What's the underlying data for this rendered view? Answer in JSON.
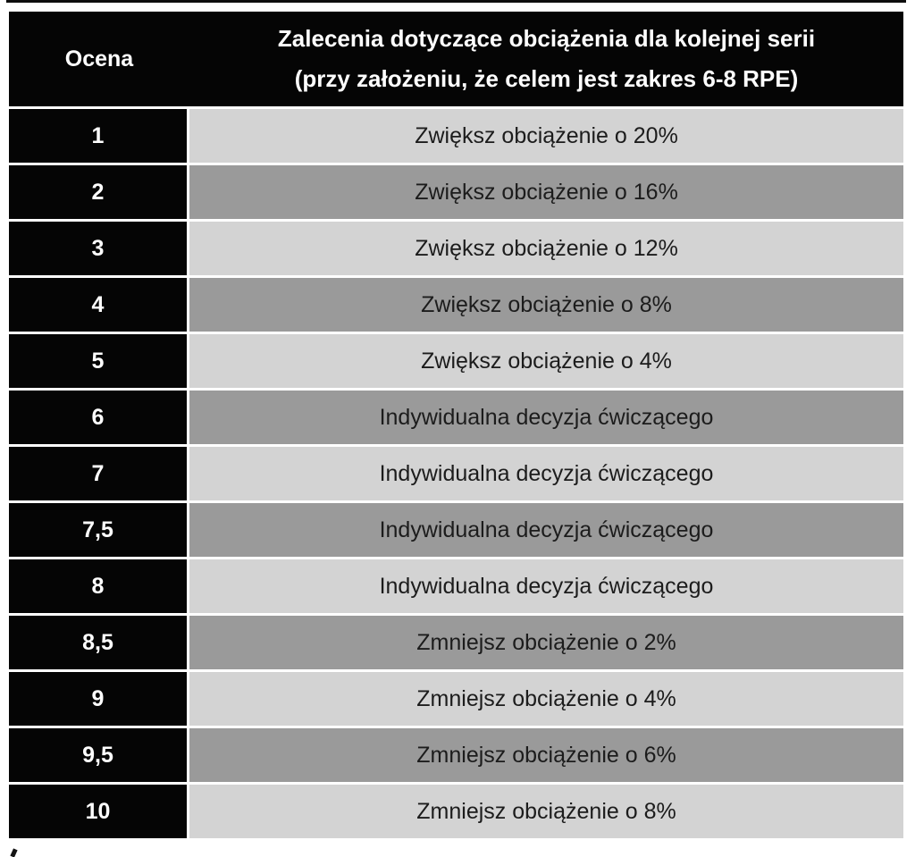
{
  "colors": {
    "header_bg": "#050505",
    "header_text": "#ffffff",
    "rating_bg": "#050505",
    "rating_text": "#ffffff",
    "row_dark_bg": "#9a9a9a",
    "row_light_bg": "#d3d3d3",
    "row_text": "#1c1c1c",
    "separator": "#ffffff",
    "page_bg": "#ffffff"
  },
  "table": {
    "header": {
      "ocena": "Ocena",
      "recommendation_line1": "Zalecenia dotyczące obciążenia dla kolejnej serii",
      "recommendation_line2": "(przy założeniu, że celem jest zakres 6-8 RPE)"
    },
    "rows": [
      {
        "ocena": "1",
        "recommendation": "Zwiększ obciążenie o 20%",
        "shade": "dark"
      },
      {
        "ocena": "2",
        "recommendation": "Zwiększ obciążenie o 16%",
        "shade": "light"
      },
      {
        "ocena": "3",
        "recommendation": "Zwiększ obciążenie o 12%",
        "shade": "dark"
      },
      {
        "ocena": "4",
        "recommendation": "Zwiększ obciążenie o 8%",
        "shade": "light"
      },
      {
        "ocena": "5",
        "recommendation": "Zwiększ obciążenie o 4%",
        "shade": "dark"
      },
      {
        "ocena": "6",
        "recommendation": "Indywidualna decyzja ćwiczącego",
        "shade": "light"
      },
      {
        "ocena": "7",
        "recommendation": "Indywidualna decyzja ćwiczącego",
        "shade": "dark"
      },
      {
        "ocena": "7,5",
        "recommendation": "Indywidualna decyzja ćwiczącego",
        "shade": "light"
      },
      {
        "ocena": "8",
        "recommendation": "Indywidualna decyzja ćwiczącego",
        "shade": "dark"
      },
      {
        "ocena": "8,5",
        "recommendation": "Zmniejsz obciążenie o 2%",
        "shade": "light"
      },
      {
        "ocena": "9",
        "recommendation": "Zmniejsz obciążenie o 4%",
        "shade": "dark"
      },
      {
        "ocena": "9,5",
        "recommendation": "Zmniejsz obciążenie o 6%",
        "shade": "light"
      },
      {
        "ocena": "10",
        "recommendation": "Zmniejsz obciążenie o 8%",
        "shade": "dark"
      }
    ]
  }
}
